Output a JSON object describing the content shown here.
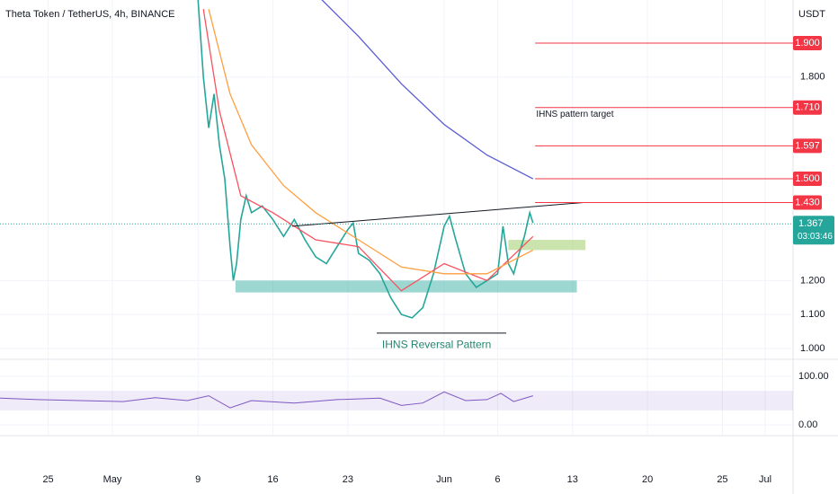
{
  "chart_data": {
    "type": "line",
    "title": "Theta Token / TetherUS, 4h, BINANCE",
    "currency": "USDT",
    "xlim": [
      20.5,
      94.6
    ],
    "xticks": [
      25,
      {
        "value": 31,
        "label": "May"
      },
      {
        "value": 39,
        "label": "9"
      },
      {
        "value": 46,
        "label": "16"
      },
      {
        "value": 53,
        "label": "23"
      },
      {
        "value": 62,
        "label": "Jun"
      },
      {
        "value": 67,
        "label": "6"
      },
      {
        "value": 74,
        "label": "13"
      },
      {
        "value": 81,
        "label": "20"
      },
      {
        "value": 88,
        "label": "25"
      },
      {
        "value": 92,
        "label": "Jul"
      }
    ],
    "ylim": [
      0.968,
      2.027
    ],
    "yticks": [
      {
        "value": 1.0,
        "label": "1.000"
      },
      {
        "value": 1.1,
        "label": "1.100"
      },
      {
        "value": 1.2,
        "label": "1.200"
      },
      {
        "value": 1.8,
        "label": "1.800"
      }
    ],
    "series": [
      {
        "color": "#26a69a",
        "x": [
          39,
          39.5,
          40,
          40.5,
          41,
          41.5,
          42,
          42.3,
          42.6,
          43,
          43.5,
          44,
          45,
          46,
          47,
          48,
          49,
          50,
          51,
          52,
          53,
          53.5,
          54,
          55,
          56,
          57,
          58,
          59,
          60,
          61,
          62,
          62.5,
          63,
          64,
          65,
          66,
          67,
          67.5,
          68,
          68.5,
          69,
          69.5,
          70,
          70.3
        ],
        "values": [
          2.03,
          1.8,
          1.65,
          1.75,
          1.6,
          1.5,
          1.3,
          1.2,
          1.25,
          1.38,
          1.45,
          1.4,
          1.42,
          1.38,
          1.33,
          1.38,
          1.32,
          1.27,
          1.25,
          1.3,
          1.35,
          1.37,
          1.28,
          1.26,
          1.22,
          1.15,
          1.1,
          1.09,
          1.12,
          1.22,
          1.36,
          1.39,
          1.33,
          1.22,
          1.18,
          1.2,
          1.22,
          1.36,
          1.25,
          1.22,
          1.28,
          1.33,
          1.4,
          1.37
        ]
      },
      {
        "color": "#f7525f",
        "x": [
          39.5,
          41,
          43,
          46,
          50,
          54,
          58,
          62,
          66,
          70.3
        ],
        "values": [
          2.0,
          1.7,
          1.45,
          1.4,
          1.32,
          1.3,
          1.17,
          1.25,
          1.2,
          1.33
        ]
      },
      {
        "color": "#ff9f40",
        "x": [
          40,
          42,
          44,
          47,
          50,
          54,
          58,
          62,
          66,
          70.3
        ],
        "values": [
          2.0,
          1.75,
          1.6,
          1.48,
          1.4,
          1.32,
          1.24,
          1.22,
          1.22,
          1.29
        ]
      },
      {
        "color": "#5b5bd6",
        "x": [
          50.5,
          54,
          58,
          62,
          66,
          70.3
        ],
        "values": [
          2.03,
          1.92,
          1.78,
          1.66,
          1.57,
          1.5
        ]
      }
    ],
    "levels": [
      {
        "value": 1.9,
        "label": "1.900"
      },
      {
        "value": 1.71,
        "label": "1.710"
      },
      {
        "value": 1.597,
        "label": "1.597"
      },
      {
        "value": 1.5,
        "label": "1.500"
      },
      {
        "value": 1.43,
        "label": "1.430"
      }
    ],
    "levels_from": 70.5,
    "last_price": {
      "value": 1.367,
      "label": "1.367"
    },
    "countdown": "03:03:46",
    "zones": [
      {
        "x": [
          42.5,
          74.4
        ],
        "y": [
          1.165,
          1.2
        ]
      },
      {
        "x": [
          68,
          75.2
        ],
        "y": [
          1.29,
          1.32
        ]
      }
    ],
    "trendlines": [
      {
        "x": [
          47.8,
          75
        ],
        "y": [
          1.36,
          1.43
        ]
      },
      {
        "x": [
          55.7,
          67.8
        ],
        "y": [
          1.045,
          1.045
        ]
      }
    ],
    "annotations": [
      {
        "text": "IHNS pattern target",
        "x": 70.6,
        "y": 1.69
      },
      {
        "text": "IHNS Reversal Pattern",
        "x": 56.2,
        "y": 1.01
      }
    ],
    "rsi": {
      "ylim": [
        -22,
        135
      ],
      "yticks": [
        {
          "value": 100,
          "label": "100.00"
        },
        {
          "value": 0,
          "label": "0.00"
        }
      ],
      "band": [
        30,
        70
      ],
      "color": "#7e57c2",
      "x": [
        20.5,
        24,
        28,
        32,
        35,
        38,
        40,
        42,
        44,
        48,
        52,
        56,
        58,
        60,
        62,
        64,
        66,
        67.3,
        68.5,
        70.3
      ],
      "values": [
        55,
        52,
        50,
        48,
        56,
        50,
        60,
        35,
        50,
        45,
        52,
        55,
        40,
        45,
        68,
        50,
        52,
        65,
        48,
        60
      ]
    }
  }
}
